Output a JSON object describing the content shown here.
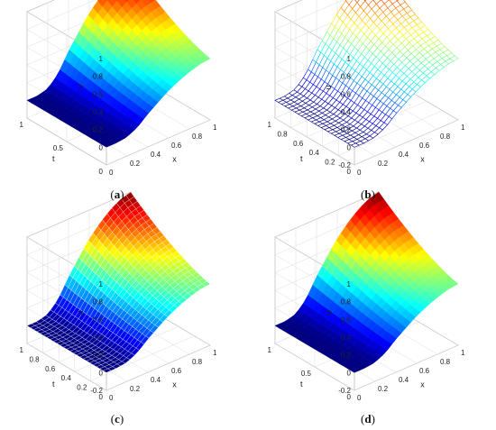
{
  "chart_data": [
    {
      "type": "surface",
      "panel": "a",
      "caption_label": "a",
      "render": "shaded-surface",
      "zlabel": "u",
      "xlabel": "x",
      "ylabel": "t",
      "xlim": [
        0,
        1
      ],
      "ylim": [
        0,
        1
      ],
      "zlim": [
        -0.2,
        1
      ],
      "x_ticks": [
        "0",
        "0.2",
        "0.4",
        "0.6",
        "0.8",
        "1"
      ],
      "t_ticks": [
        "0",
        "0.5",
        "1"
      ],
      "z_ticks": [
        "0",
        "0.2",
        "0.4",
        "0.6",
        "0.8",
        "1"
      ],
      "x": [
        0,
        0.1,
        0.2,
        0.3,
        0.4,
        0.5,
        0.6,
        0.7,
        0.8,
        0.9,
        1
      ],
      "u_final": [
        0,
        0,
        0.03,
        0.15,
        0.35,
        0.52,
        0.68,
        0.8,
        0.9,
        0.97,
        1
      ],
      "colormap": "jet"
    },
    {
      "type": "surface",
      "panel": "b",
      "caption_label": "b",
      "render": "mesh",
      "zlabel": "u",
      "xlabel": "x",
      "ylabel": "t",
      "xlim": [
        0,
        1
      ],
      "ylim": [
        0,
        1
      ],
      "zlim": [
        -0.2,
        1
      ],
      "x_ticks": [
        "0",
        "0.2",
        "0.4",
        "0.6",
        "0.8",
        "1"
      ],
      "t_ticks": [
        "0",
        "0.2",
        "0.4",
        "0.6",
        "0.8",
        "1"
      ],
      "z_ticks": [
        "-0.2",
        "0",
        "0.2",
        "0.4",
        "0.6",
        "0.8",
        "1"
      ],
      "x": [
        0,
        0.1,
        0.2,
        0.3,
        0.4,
        0.5,
        0.6,
        0.7,
        0.8,
        0.9,
        1
      ],
      "u_final": [
        0,
        0,
        0.03,
        0.15,
        0.35,
        0.52,
        0.68,
        0.8,
        0.9,
        0.97,
        1
      ],
      "colormap": "jet"
    },
    {
      "type": "surface",
      "panel": "c",
      "caption_label": "c",
      "render": "faceted-surface",
      "zlabel": "u",
      "xlabel": "x",
      "ylabel": "t",
      "xlim": [
        0,
        1
      ],
      "ylim": [
        0,
        1
      ],
      "zlim": [
        -0.2,
        1
      ],
      "x_ticks": [
        "0",
        "0.2",
        "0.4",
        "0.6",
        "0.8",
        "1"
      ],
      "t_ticks": [
        "0",
        "0.2",
        "0.4",
        "0.6",
        "0.8",
        "1"
      ],
      "z_ticks": [
        "-0.2",
        "0",
        "0.2",
        "0.4",
        "0.6",
        "0.8",
        "1"
      ],
      "x": [
        0,
        0.1,
        0.2,
        0.3,
        0.4,
        0.5,
        0.6,
        0.7,
        0.8,
        0.9,
        1
      ],
      "u_final": [
        0,
        0,
        0.03,
        0.15,
        0.35,
        0.52,
        0.68,
        0.8,
        0.9,
        0.97,
        1
      ],
      "colormap": "jet"
    },
    {
      "type": "surface",
      "panel": "d",
      "caption_label": "d",
      "render": "shaded-surface",
      "zlabel": "u",
      "xlabel": "x",
      "ylabel": "t",
      "xlim": [
        0,
        1
      ],
      "ylim": [
        0,
        1
      ],
      "zlim": [
        -0.2,
        1
      ],
      "x_ticks": [
        "0",
        "0.2",
        "0.4",
        "0.6",
        "0.8",
        "1"
      ],
      "t_ticks": [
        "0",
        "0.5",
        "1"
      ],
      "z_ticks": [
        "-0.2",
        "0",
        "0.2",
        "0.4",
        "0.6",
        "0.8",
        "1"
      ],
      "x": [
        0,
        0.1,
        0.2,
        0.3,
        0.4,
        0.5,
        0.6,
        0.7,
        0.8,
        0.9,
        1
      ],
      "u_final": [
        0,
        0,
        0.03,
        0.15,
        0.35,
        0.52,
        0.68,
        0.8,
        0.9,
        0.97,
        1
      ],
      "colormap": "jet"
    }
  ]
}
